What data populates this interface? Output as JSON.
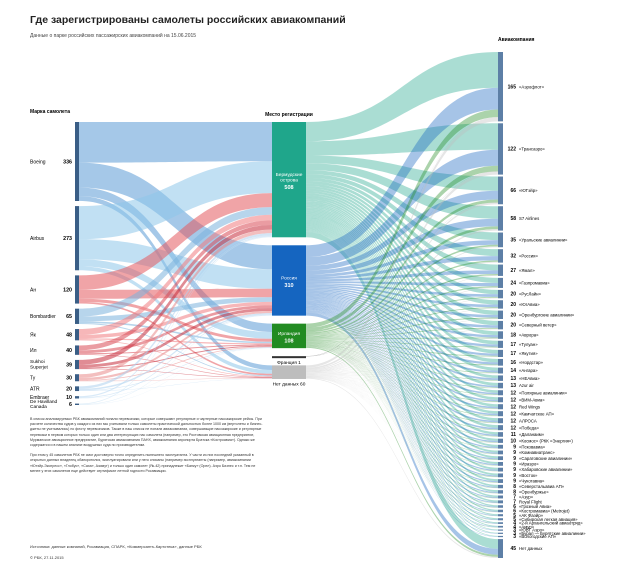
{
  "title": "Где зарегистрированы самолеты российских авиакомпаний",
  "subtitle": "Данные о парке российских пассажирских авиакомпаний на 15.06.2015",
  "notes": [
    "В список анализируемых РБК авиакомпаний попали перевозчики, которые совершают регулярные и чартерные пассажирские рейсы. При расчете количества судов у каждого из них мы учитывали только самолеты практической дальностью более 1000 км (вертолеты и бизнес-джеты не учитывались) по флоту перевозчиков. Также в наш список не попали авиакомпании, совершающие пассажирские и регулярные перевозки в первом которых только один или два интересующих нас самолета (например, это Ростовская авиационная предприятие, Мурманское авиационное предприятие, Бурятская авиакомпания ПАНХ, авиакомпания аэропорта Братска «Костроавиа»). Однако же содержатся и в нашем анализе воздушных суда по производителям.",
    "При этом у 45 самолетов РБК не смог достоверно точно определить нынешнего эксплуатанта. У части из них последний указанный в открытых данных владелец обанкротился, эксплуатировали или у него списаны (например эксплуатанты (например, авиакомпании «Ютэйр-Экспресс», «Глобус», «Саха», Азимут) и только один самолет (Як-42) принадлежит «Банку» (Орел). Аэро Бизнес и т.п. Тем не менее у этих самолетов еще действует сертификат летной годности Росавиации."
  ],
  "source": "Источники: данные компаний, Росавиация, СПАРК, «Коммерсантъ-Картотека», данные РБК",
  "copyright": "© РБК, 27.11.2015",
  "chart_data": {
    "type": "sankey",
    "source_column_title": "Марка самолета",
    "registration_column_title": "Место регистрации",
    "airline_column_title": "Авиакомпания",
    "manufacturers": [
      {
        "name": "Boeing",
        "value": 336,
        "color": "#5b9bd5"
      },
      {
        "name": "Airbus",
        "value": 273,
        "color": "#8ec6ea"
      },
      {
        "name": "Ан",
        "value": 120,
        "color": "#e4595e"
      },
      {
        "name": "Bombardier",
        "value": 65,
        "color": "#7bb3dc"
      },
      {
        "name": "Як",
        "value": 48,
        "color": "#f07c80"
      },
      {
        "name": "Ил",
        "value": 40,
        "color": "#d84b55"
      },
      {
        "name": "Sukhoi Superjet",
        "value": 39,
        "color": "#c62d3d"
      },
      {
        "name": "Ту",
        "value": 30,
        "color": "#ea8a8a"
      },
      {
        "name": "ATR",
        "value": 20,
        "color": "#aed2ef"
      },
      {
        "name": "Embraer",
        "value": 10,
        "color": "#b9d9f2"
      },
      {
        "name": "De Havilland Canada",
        "value": 6,
        "color": "#c8e1f4"
      }
    ],
    "registrations": [
      {
        "name": "Бермудские острова",
        "value": 508,
        "color": "#1fa68b"
      },
      {
        "name": "Россия",
        "value": 310,
        "color": "#1565c0"
      },
      {
        "name": "Ирландия",
        "value": 108,
        "color": "#228b22"
      },
      {
        "name": "Франция",
        "value": 1,
        "color": "#333333"
      },
      {
        "name": "Нет данных",
        "value": 60,
        "color": "#bdbdbd"
      }
    ],
    "airlines": [
      {
        "name": "«Аэрофлот»",
        "value": 165
      },
      {
        "name": "«Трансаэро»",
        "value": 122
      },
      {
        "name": "«ЮТэйр»",
        "value": 66
      },
      {
        "name": "S7 Airlines",
        "value": 58
      },
      {
        "name": "«Уральские авиалинии»",
        "value": 35
      },
      {
        "name": "«Россия»",
        "value": 32
      },
      {
        "name": "«Ямал»",
        "value": 27
      },
      {
        "name": "«Газпромавиа»",
        "value": 24
      },
      {
        "name": "«РусЛайн»",
        "value": 20
      },
      {
        "name": "«ЮгАвиа»",
        "value": 20
      },
      {
        "name": "«Оренбургские авиалинии»",
        "value": 20
      },
      {
        "name": "«Северный ветер»",
        "value": 20
      },
      {
        "name": "«Аврора»",
        "value": 18
      },
      {
        "name": "«Тулуан»",
        "value": 17
      },
      {
        "name": "«Якутия»",
        "value": 17
      },
      {
        "name": "«Нордстар»",
        "value": 16
      },
      {
        "name": "«Ангара»",
        "value": 14
      },
      {
        "name": "«НЕАвиа»",
        "value": 13
      },
      {
        "name": "Azur air",
        "value": 13
      },
      {
        "name": "«Полярные авиалинии»",
        "value": 12
      },
      {
        "name": "«ВИМ-Авиа»",
        "value": 12
      },
      {
        "name": "Red Wings",
        "value": 12
      },
      {
        "name": "«Камчатское АП»",
        "value": 12
      },
      {
        "name": "АЛРОСА",
        "value": 12
      },
      {
        "name": "«Победа»",
        "value": 12
      },
      {
        "name": "«Даланаим»",
        "value": 11
      },
      {
        "name": "«Космос» (РКК «Энергия»)",
        "value": 10
      },
      {
        "name": "«Псковавиа»",
        "value": 9
      },
      {
        "name": "«Комиавиатранс»",
        "value": 9
      },
      {
        "name": "«Саратовские авиалинии»",
        "value": 9
      },
      {
        "name": "«Ираэро»",
        "value": 9
      },
      {
        "name": "«Хабаровские авиалинии»",
        "value": 9
      },
      {
        "name": "«Восток»",
        "value": 9
      },
      {
        "name": "«Чукотавиа»",
        "value": 9
      },
      {
        "name": "«Северстальавиа АП»",
        "value": 8
      },
      {
        "name": "«Оренбуржье»",
        "value": 8
      },
      {
        "name": "«Азур»",
        "value": 7
      },
      {
        "name": "Royal Flight",
        "value": 7
      },
      {
        "name": "«Грозный Авиа»",
        "value": 6
      },
      {
        "name": "«Костромавиа» (Metrojet)",
        "value": 6
      },
      {
        "name": "«АК Фаэйр»",
        "value": 5
      },
      {
        "name": "«Сибирская легкая авиация»",
        "value": 5
      },
      {
        "name": "«2-й Архангельский авиаотряд»",
        "value": 4
      },
      {
        "name": "«Амур»",
        "value": 4
      },
      {
        "name": "«ЮВТ Аэро»",
        "value": 3
      },
      {
        "name": "«Бурал — Бурятские авиалинии»",
        "value": 3
      },
      {
        "name": "«Вологодские АП»",
        "value": 3
      },
      {
        "name": "Нет данных",
        "value": 45
      }
    ]
  }
}
